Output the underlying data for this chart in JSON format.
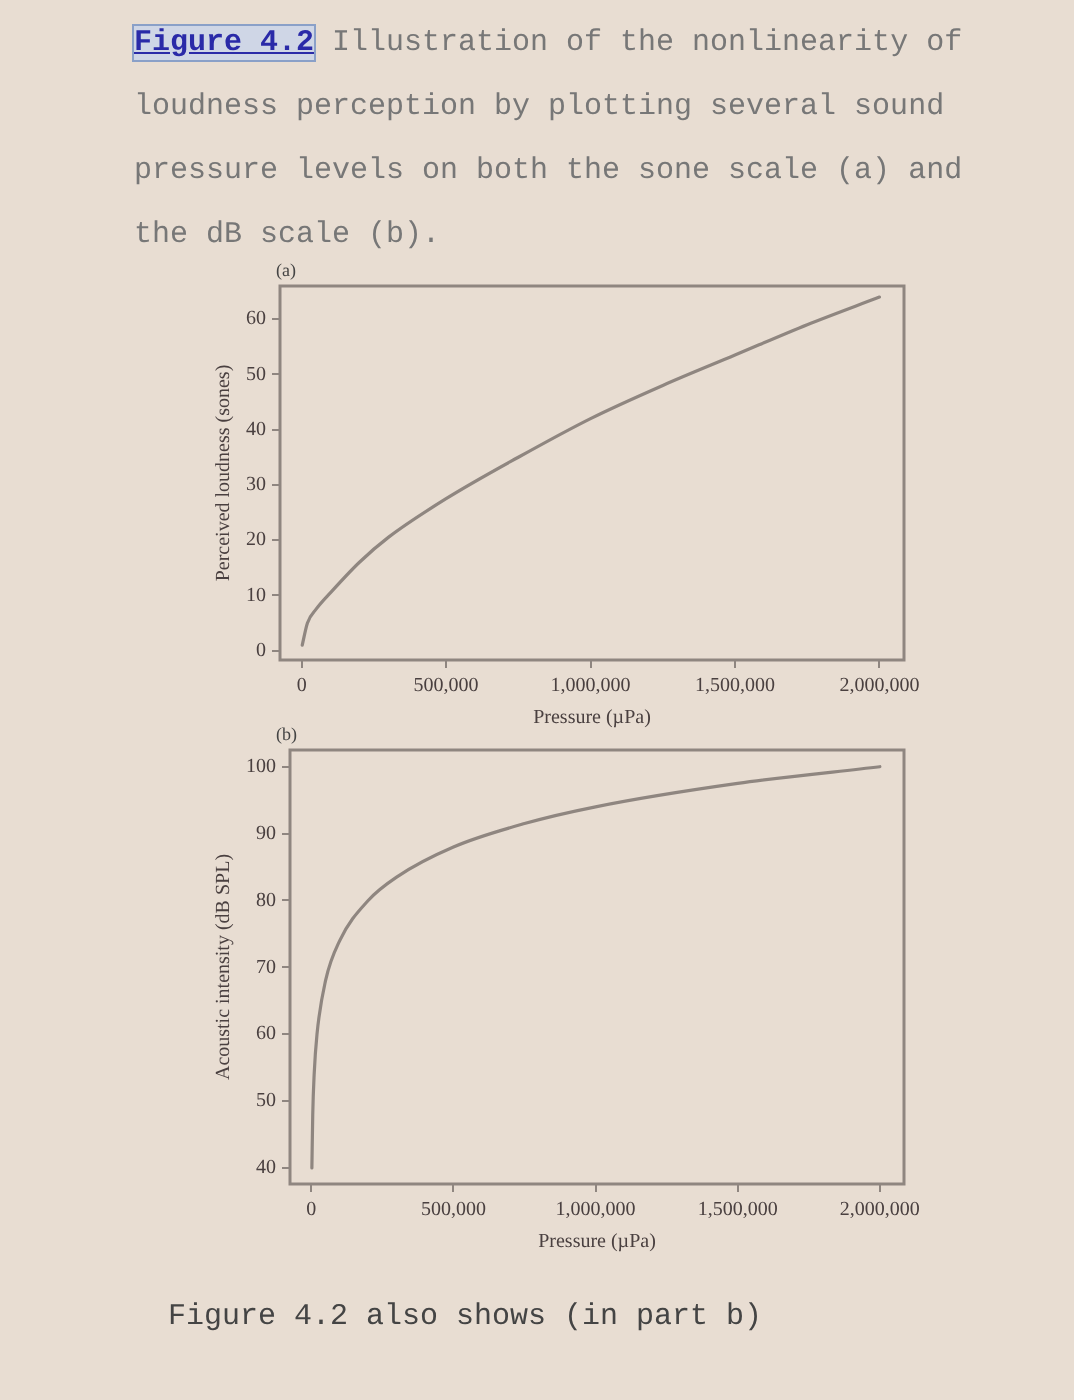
{
  "chart_data": [
    {
      "type": "line",
      "title": "Figure 4.2 Illustration of the nonlinearity of loudness perception by plotting several sound pressure levels on both the sone scale (a) and the dB scale (b).",
      "subtitle": "(a)",
      "xlabel": "Pressure (µPa)",
      "ylabel": "Perceived loudness (sones)",
      "xlim": [
        -75000,
        2085000
      ],
      "xticks": [
        0,
        {
          "value": 500000,
          "label": "500,000"
        },
        {
          "value": 1000000,
          "label": "1,000,000"
        },
        {
          "value": 1500000,
          "label": "1,500,000"
        },
        {
          "value": 2000000,
          "label": "2,000,000"
        }
      ],
      "ylim": [
        -1.7,
        66
      ],
      "yticks": [
        0,
        10,
        20,
        30,
        40,
        50,
        60
      ],
      "grid": false,
      "legend": false,
      "marker": "none",
      "line_style": "solid",
      "x": [
        2000,
        20000,
        50000,
        100000,
        200000,
        300000,
        500000,
        750000,
        1000000,
        1250000,
        1500000,
        1750000,
        2000000
      ],
      "series": [
        {
          "color": "#8f8680",
          "values": [
            1,
            5,
            7.5,
            10.5,
            16,
            20.5,
            27.5,
            35,
            42,
            48,
            53.5,
            59,
            64
          ]
        }
      ]
    },
    {
      "type": "line",
      "subtitle": "(b)",
      "xlabel": "Pressure (µPa)",
      "ylabel": "Acoustic intensity (dB SPL)",
      "xlim": [
        -75000,
        2085000
      ],
      "xticks": [
        0,
        {
          "value": 500000,
          "label": "500,000"
        },
        {
          "value": 1000000,
          "label": "1,000,000"
        },
        {
          "value": 1500000,
          "label": "1,500,000"
        },
        {
          "value": 2000000,
          "label": "2,000,000"
        }
      ],
      "ylim": [
        37.6,
        102.5
      ],
      "yticks": [
        40,
        50,
        60,
        70,
        80,
        90,
        100
      ],
      "grid": false,
      "legend": false,
      "marker": "none",
      "line_style": "solid",
      "annotations": [
        "Figure 4.2 also shows (in part b)"
      ],
      "x": [
        2000,
        5000,
        10000,
        20000,
        50000,
        100000,
        200000,
        300000,
        500000,
        750000,
        1000000,
        1500000,
        2000000
      ],
      "series": [
        {
          "color": "#8f8680",
          "values": [
            40,
            48,
            54,
            60,
            68,
            74,
            80,
            83.5,
            88,
            91.5,
            94,
            97.5,
            100
          ]
        }
      ]
    }
  ]
}
